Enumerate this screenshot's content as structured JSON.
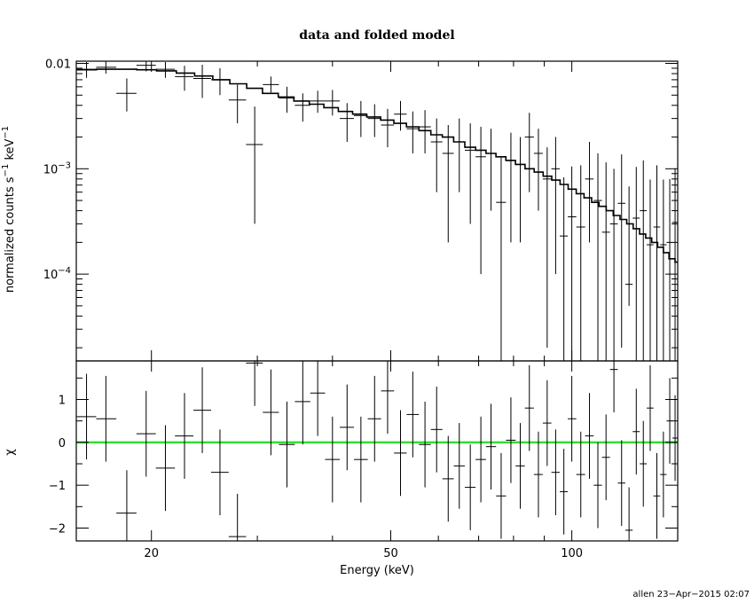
{
  "chart_data": [
    {
      "type": "scatter",
      "title": "data and folded model",
      "xlabel": "Energy (keV)",
      "ylabel_main": "normalized counts s",
      "ylabel_sup1": "−1",
      "ylabel_mid": " keV",
      "ylabel_sup2": "−1",
      "xscale": "log",
      "yscale": "log",
      "xlim": [
        15,
        150
      ],
      "ylim": [
        1.5e-05,
        0.0105
      ],
      "x_ticks": [
        {
          "value": 20,
          "label": "20"
        },
        {
          "value": 50,
          "label": "50"
        },
        {
          "value": 100,
          "label": "100"
        }
      ],
      "y_ticks": [
        {
          "value": 0.01,
          "base": "0.01",
          "exp": ""
        },
        {
          "value": 0.001,
          "base": "10",
          "exp": "−3"
        },
        {
          "value": 0.0001,
          "base": "10",
          "exp": "−4"
        }
      ],
      "series": [
        {
          "kind": "data",
          "x": [
            15.6,
            16.8,
            18.2,
            19.6,
            21.1,
            22.7,
            24.3,
            26.0,
            27.8,
            29.7,
            31.6,
            33.6,
            35.7,
            37.8,
            40.0,
            42.3,
            44.6,
            47.0,
            49.4,
            51.9,
            54.4,
            57.0,
            59.6,
            62.3,
            65.0,
            67.8,
            70.6,
            73.4,
            76.3,
            79.2,
            82.1,
            85.0,
            88.0,
            91.0,
            94.0,
            97.0,
            100.0,
            103.5,
            107.0,
            110.5,
            114.0,
            117.5,
            121.0,
            124.5,
            128.0,
            131.5,
            135.0,
            138.5,
            142.0,
            145.5,
            148.5
          ],
          "y": [
            0.0088,
            0.0092,
            0.0052,
            0.0096,
            0.0088,
            0.0075,
            0.0072,
            0.007,
            0.0045,
            0.0017,
            0.0063,
            0.0047,
            0.004,
            0.0044,
            0.0044,
            0.003,
            0.0032,
            0.003,
            0.0026,
            0.0033,
            0.0024,
            0.0025,
            0.0018,
            0.0014,
            0.0018,
            0.0015,
            0.0013,
            0.0014,
            0.00048,
            0.0012,
            0.0011,
            0.002,
            0.0014,
            0.0008,
            0.001,
            0.00023,
            0.00035,
            0.00028,
            0.0008,
            0.0005,
            0.00025,
            0.0003,
            0.00047,
            8e-05,
            0.00034,
            0.0004,
            0.00019,
            0.00028,
            0.00019,
            0.0002,
            0.00031
          ],
          "yerr_lo": [
            0.0015,
            0.0012,
            0.0017,
            0.0012,
            0.0015,
            0.002,
            0.0025,
            0.002,
            0.0018,
            0.0014,
            0.001,
            0.0013,
            0.0012,
            0.001,
            0.0012,
            0.0012,
            0.0012,
            0.001,
            0.001,
            0.001,
            0.001,
            0.0011,
            0.0012,
            0.0012,
            0.0012,
            0.0012,
            0.0012,
            0.001,
            0.00047,
            0.001,
            0.0009,
            0.0014,
            0.001,
            0.00078,
            0.0009,
            0.00022,
            0.00034,
            0.00027,
            0.0006,
            0.00049,
            0.00024,
            0.00029,
            0.00045,
            3e-05,
            0.00033,
            0.00039,
            0.00018,
            0.00027,
            0.00018,
            0.00019,
            0.0003
          ],
          "yerr_hi": [
            0.0015,
            0.0012,
            0.002,
            0.0012,
            0.0015,
            0.002,
            0.0025,
            0.002,
            0.0018,
            0.0022,
            0.0012,
            0.0013,
            0.0012,
            0.0011,
            0.0012,
            0.0012,
            0.0012,
            0.0011,
            0.0011,
            0.0011,
            0.0011,
            0.0011,
            0.0012,
            0.0012,
            0.0012,
            0.0012,
            0.0012,
            0.001,
            0.0008,
            0.001,
            0.0009,
            0.0014,
            0.001,
            0.0008,
            0.001,
            0.0006,
            0.0007,
            0.0008,
            0.001,
            0.0009,
            0.0009,
            0.0007,
            0.0009,
            0.0006,
            0.0007,
            0.0008,
            0.0006,
            0.0008,
            0.0006,
            0.0006,
            0.0007
          ]
        },
        {
          "kind": "model",
          "x": [
            15.0,
            16.2,
            17.5,
            18.9,
            20.4,
            22.0,
            23.6,
            25.3,
            27.0,
            28.8,
            30.6,
            32.5,
            34.5,
            36.6,
            38.7,
            40.9,
            43.2,
            45.6,
            48.1,
            50.6,
            53.1,
            55.7,
            58.3,
            60.9,
            63.6,
            66.4,
            69.2,
            72.0,
            74.8,
            77.7,
            80.6,
            83.6,
            86.6,
            89.6,
            92.6,
            95.6,
            98.6,
            101.7,
            104.8,
            107.9,
            111.0,
            114.1,
            117.2,
            120.3,
            123.4,
            126.5,
            129.6,
            132.7,
            135.8,
            138.9,
            142.0,
            145.1,
            148.5,
            150.0
          ],
          "y": [
            0.0087,
            0.0088,
            0.0088,
            0.0087,
            0.0085,
            0.0081,
            0.0076,
            0.007,
            0.0064,
            0.0058,
            0.0052,
            0.0048,
            0.0044,
            0.0041,
            0.0038,
            0.0035,
            0.0033,
            0.0031,
            0.0029,
            0.0027,
            0.0025,
            0.0023,
            0.0021,
            0.002,
            0.0018,
            0.0016,
            0.0015,
            0.0014,
            0.0013,
            0.0012,
            0.0011,
            0.001,
            0.00093,
            0.00085,
            0.00078,
            0.00071,
            0.00064,
            0.00058,
            0.00053,
            0.00048,
            0.00044,
            0.0004,
            0.00036,
            0.00033,
            0.0003,
            0.00027,
            0.00024,
            0.00022,
            0.0002,
            0.00018,
            0.00016,
            0.00014,
            0.00013,
            0.00013
          ]
        }
      ]
    },
    {
      "type": "scatter",
      "ylabel": "χ",
      "xscale": "log",
      "xlim": [
        15,
        150
      ],
      "ylim": [
        -2.3,
        1.9
      ],
      "zero_line_color": "#33dd33",
      "y_ticks": [
        {
          "value": 1,
          "label": "1"
        },
        {
          "value": 0,
          "label": "0"
        },
        {
          "value": -1,
          "label": "−1"
        },
        {
          "value": -2,
          "label": "−2"
        }
      ],
      "series": [
        {
          "kind": "residuals",
          "x": [
            15.6,
            16.8,
            18.2,
            19.6,
            21.1,
            22.7,
            24.3,
            26.0,
            27.8,
            29.7,
            31.6,
            33.6,
            35.7,
            37.8,
            40.0,
            42.3,
            44.6,
            47.0,
            49.4,
            51.9,
            54.4,
            57.0,
            59.6,
            62.3,
            65.0,
            67.8,
            70.6,
            73.4,
            76.3,
            79.2,
            82.1,
            85.0,
            88.0,
            91.0,
            94.0,
            97.0,
            100.0,
            103.5,
            107.0,
            110.5,
            114.0,
            117.5,
            121.0,
            124.5,
            128.0,
            131.5,
            135.0,
            138.5,
            142.0,
            145.5,
            148.5
          ],
          "y": [
            0.6,
            0.55,
            -1.65,
            0.2,
            -0.6,
            0.15,
            0.75,
            -0.7,
            -2.2,
            1.85,
            0.7,
            -0.05,
            0.95,
            1.15,
            -0.4,
            0.35,
            -0.4,
            0.55,
            1.2,
            -0.25,
            0.65,
            -0.05,
            0.3,
            -0.85,
            -0.55,
            -1.05,
            -0.4,
            -0.1,
            -1.25,
            0.05,
            -0.55,
            0.8,
            -0.75,
            0.45,
            -0.7,
            -1.15,
            0.55,
            -0.75,
            0.15,
            -1.0,
            -0.35,
            1.7,
            -0.95,
            -2.05,
            0.25,
            -0.5,
            0.8,
            -1.25,
            -0.75,
            0.5,
            0.1
          ],
          "yerr": [
            1,
            1,
            1,
            1,
            1,
            1,
            1,
            1,
            1,
            1,
            1,
            1,
            1,
            1,
            1,
            1,
            1,
            1,
            1,
            1,
            1,
            1,
            1,
            1,
            1,
            1,
            1,
            1,
            1,
            1,
            1,
            1,
            1,
            1,
            1,
            1,
            1,
            1,
            1,
            1,
            1,
            1,
            1,
            1,
            1,
            1,
            1,
            1,
            1,
            1,
            1
          ]
        }
      ]
    }
  ],
  "footer": "allen 23−Apr−2015 02:07"
}
